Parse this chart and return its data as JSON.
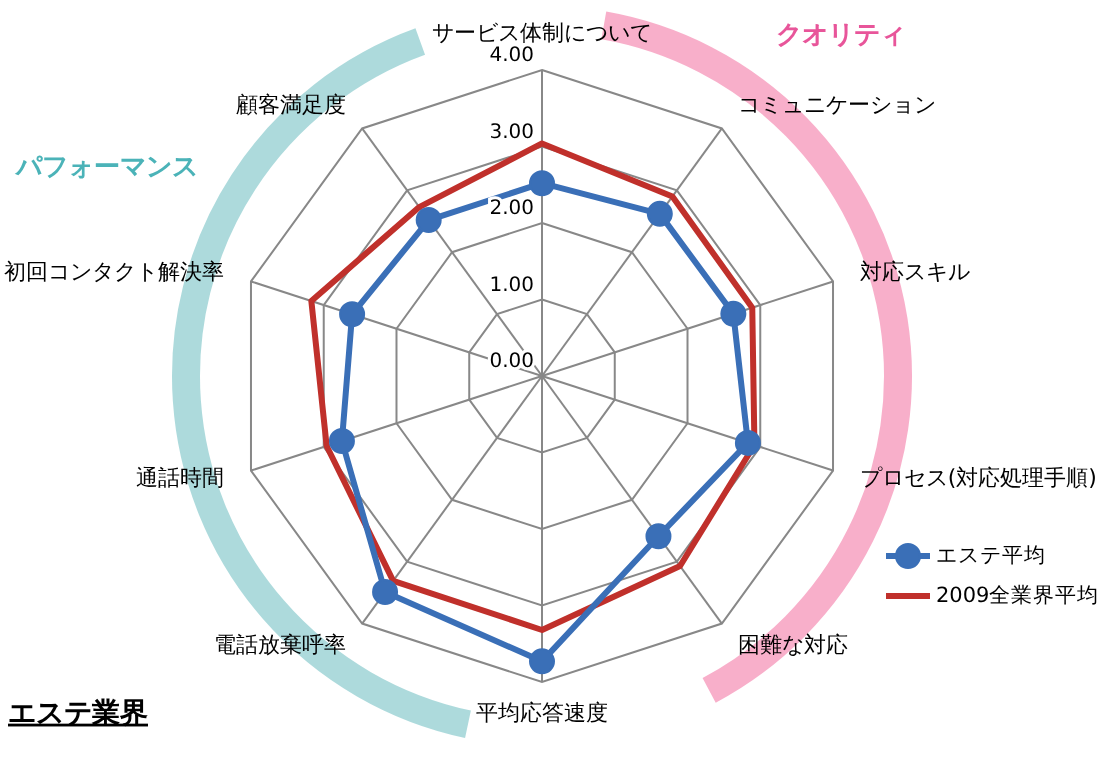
{
  "chart_data": {
    "type": "radar",
    "title": "エステ業界",
    "categories": [
      "サービス体制について",
      "コミュニケーション",
      "対応スキル",
      "プロセス(対応処理手順)",
      "困難な対応",
      "平均応答速度",
      "電話放棄呼率",
      "通話時間",
      "初回コンタクト解決率",
      "顧客満足度"
    ],
    "series": [
      {
        "name": "エステ平均",
        "color": "#3a6fb7",
        "marker": "circle",
        "values": [
          2.52,
          2.62,
          2.63,
          2.83,
          2.59,
          3.73,
          3.49,
          2.75,
          2.61,
          2.52
        ]
      },
      {
        "name": "2009全業界平均",
        "color": "#c0302b",
        "marker": "none",
        "values": [
          3.04,
          2.9,
          2.89,
          2.92,
          3.07,
          3.32,
          3.31,
          2.96,
          3.17,
          2.73
        ]
      }
    ],
    "annotations": [
      "クオリティ",
      "パフォーマンス"
    ],
    "ylim": [
      0,
      4
    ],
    "yticks": [
      {
        "value": 0,
        "label": "0.00"
      },
      {
        "value": 1,
        "label": "1.00"
      },
      {
        "value": 2,
        "label": "2.00"
      },
      {
        "value": 3,
        "label": "3.00"
      },
      {
        "value": 4,
        "label": "4.00"
      }
    ],
    "grid": true,
    "legend": "right"
  }
}
